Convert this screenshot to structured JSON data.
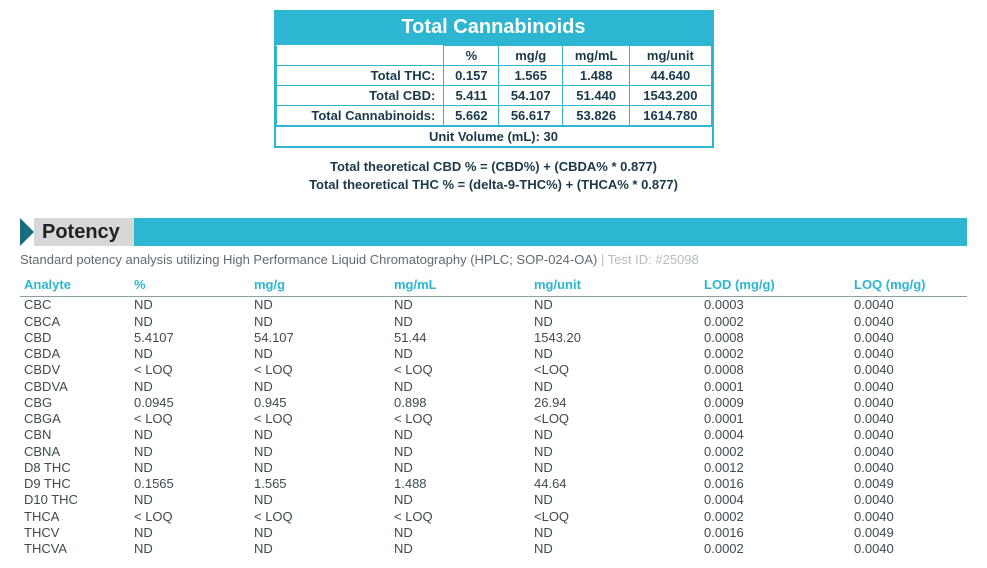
{
  "summary": {
    "title": "Total Cannabinoids",
    "col_headers": [
      "%",
      "mg/g",
      "mg/mL",
      "mg/unit"
    ],
    "rows": [
      {
        "label": "Total THC:",
        "vals": [
          "0.157",
          "1.565",
          "1.488",
          "44.640"
        ]
      },
      {
        "label": "Total CBD:",
        "vals": [
          "5.411",
          "54.107",
          "51.440",
          "1543.200"
        ]
      },
      {
        "label": "Total Cannabinoids:",
        "vals": [
          "5.662",
          "56.617",
          "53.826",
          "1614.780"
        ]
      }
    ],
    "footer": "Unit Volume (mL): 30"
  },
  "formulas": {
    "line1": "Total theoretical CBD % = (CBD%) + (CBDA% * 0.877)",
    "line2": "Total theoretical THC % = (delta-9-THC%) + (THCA% * 0.877)"
  },
  "potency": {
    "heading": "Potency",
    "desc_main": "Standard potency analysis utilizing High Performance Liquid Chromatography (HPLC; SOP-024-OA)",
    "desc_testid": " | Test ID: #25098",
    "columns": [
      "Analyte",
      "%",
      "mg/g",
      "mg/mL",
      "mg/unit",
      "LOD (mg/g)",
      "LOQ (mg/g)"
    ],
    "rows": [
      [
        "CBC",
        "ND",
        "ND",
        "ND",
        "ND",
        "0.0003",
        "0.0040"
      ],
      [
        "CBCA",
        "ND",
        "ND",
        "ND",
        "ND",
        "0.0002",
        "0.0040"
      ],
      [
        "CBD",
        "5.4107",
        "54.107",
        "51.44",
        "1543.20",
        "0.0008",
        "0.0040"
      ],
      [
        "CBDA",
        "ND",
        "ND",
        "ND",
        "ND",
        "0.0002",
        "0.0040"
      ],
      [
        "CBDV",
        "< LOQ",
        "< LOQ",
        "< LOQ",
        "<LOQ",
        "0.0008",
        "0.0040"
      ],
      [
        "CBDVA",
        "ND",
        "ND",
        "ND",
        "ND",
        "0.0001",
        "0.0040"
      ],
      [
        "CBG",
        "0.0945",
        "0.945",
        "0.898",
        "26.94",
        "0.0009",
        "0.0040"
      ],
      [
        "CBGA",
        "< LOQ",
        "< LOQ",
        "< LOQ",
        "<LOQ",
        "0.0001",
        "0.0040"
      ],
      [
        "CBN",
        "ND",
        "ND",
        "ND",
        "ND",
        "0.0004",
        "0.0040"
      ],
      [
        "CBNA",
        "ND",
        "ND",
        "ND",
        "ND",
        "0.0002",
        "0.0040"
      ],
      [
        "D8 THC",
        "ND",
        "ND",
        "ND",
        "ND",
        "0.0012",
        "0.0040"
      ],
      [
        "D9 THC",
        "0.1565",
        "1.565",
        "1.488",
        "44.64",
        "0.0016",
        "0.0049"
      ],
      [
        "D10 THC",
        "ND",
        "ND",
        "ND",
        "ND",
        "0.0004",
        "0.0040"
      ],
      [
        "THCA",
        "< LOQ",
        "< LOQ",
        "< LOQ",
        "<LOQ",
        "0.0002",
        "0.0040"
      ],
      [
        "THCV",
        "ND",
        "ND",
        "ND",
        "ND",
        "0.0016",
        "0.0049"
      ],
      [
        "THCVA",
        "ND",
        "ND",
        "ND",
        "ND",
        "0.0002",
        "0.0040"
      ]
    ]
  },
  "style": {
    "accent": "#2cb6d1",
    "chevron": "#1a6b7f",
    "section_label_bg": "#d7d7d7",
    "text_dark": "#1a3a4a",
    "text_body": "#3e4a50",
    "text_muted": "#b5bcc0",
    "background": "#ffffff",
    "rule": "#8aa0a8",
    "title_fontsize": 20,
    "body_fontsize": 13
  }
}
